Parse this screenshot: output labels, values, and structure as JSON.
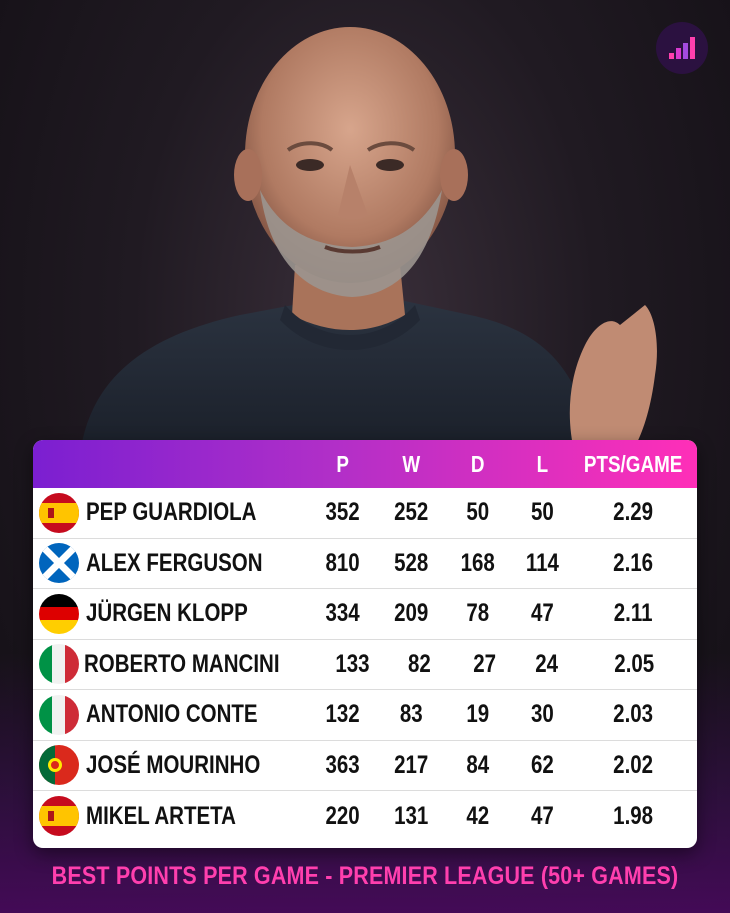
{
  "colors": {
    "accent_pink": "#ff3fae",
    "header_start": "#7b1fd1",
    "header_end": "#ff2fb8"
  },
  "photo": {
    "subject": "coach-photo"
  },
  "logo": {
    "icon": "bars-logo-icon"
  },
  "table": {
    "headers": [
      "P",
      "W",
      "D",
      "L",
      "PTS/GAME"
    ],
    "rows": [
      {
        "flag": "spain",
        "name": "PEP GUARDIOLA",
        "p": "352",
        "w": "252",
        "d": "50",
        "l": "50",
        "pts": "2.29"
      },
      {
        "flag": "scotland",
        "name": "ALEX FERGUSON",
        "p": "810",
        "w": "528",
        "d": "168",
        "l": "114",
        "pts": "2.16"
      },
      {
        "flag": "germany",
        "name": "JÜRGEN KLOPP",
        "p": "334",
        "w": "209",
        "d": "78",
        "l": "47",
        "pts": "2.11"
      },
      {
        "flag": "italy",
        "name": "ROBERTO MANCINI",
        "p": "133",
        "w": "82",
        "d": "27",
        "l": "24",
        "pts": "2.05"
      },
      {
        "flag": "italy",
        "name": "ANTONIO CONTE",
        "p": "132",
        "w": "83",
        "d": "19",
        "l": "30",
        "pts": "2.03"
      },
      {
        "flag": "portugal",
        "name": "JOSÉ MOURINHO",
        "p": "363",
        "w": "217",
        "d": "84",
        "l": "62",
        "pts": "2.02"
      },
      {
        "flag": "spain",
        "name": "MIKEL ARTETA",
        "p": "220",
        "w": "131",
        "d": "42",
        "l": "47",
        "pts": "1.98"
      }
    ]
  },
  "caption": "BEST POINTS PER GAME - PREMIER LEAGUE (50+ GAMES)"
}
